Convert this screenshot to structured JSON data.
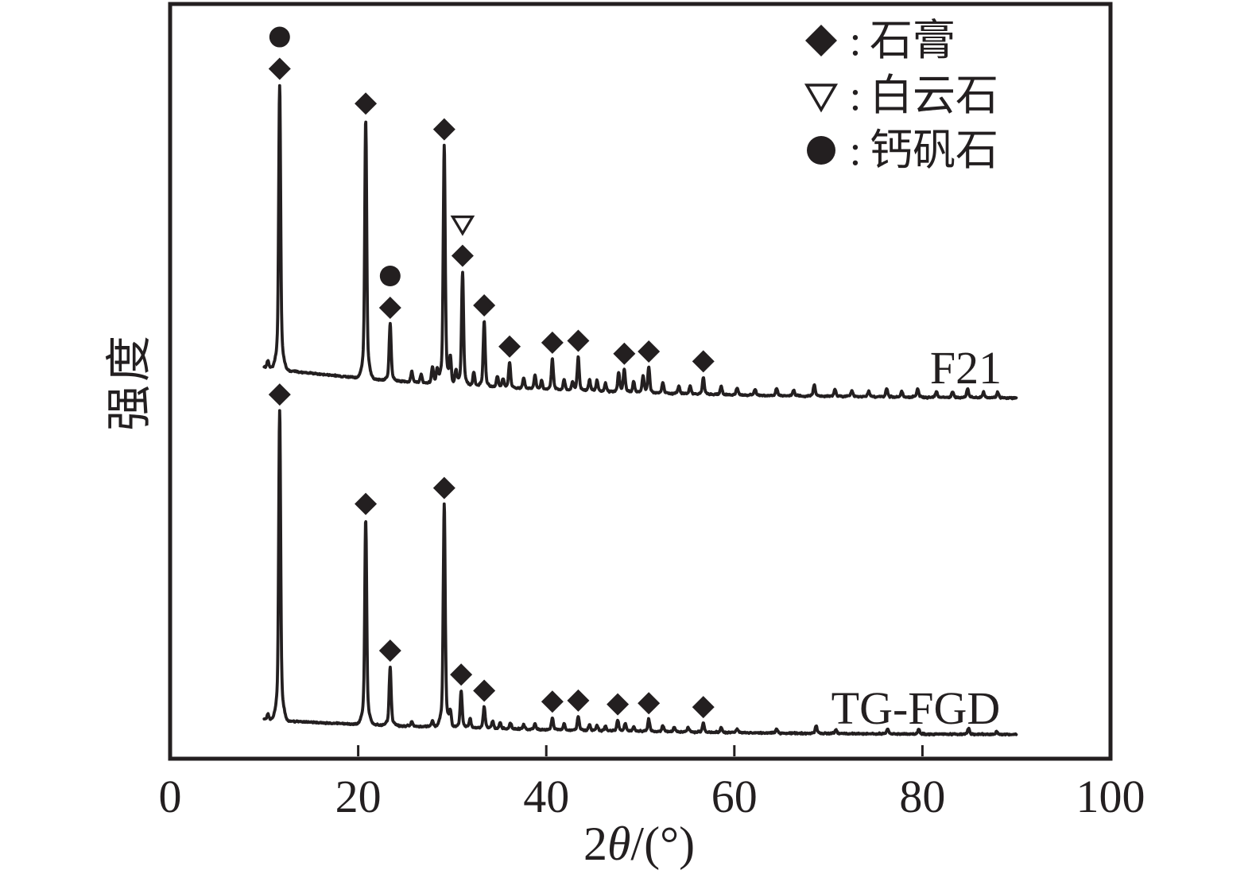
{
  "colors": {
    "ink": "#231f20",
    "background": "#ffffff"
  },
  "axes": {
    "x": {
      "label_full": "2θ/(°)",
      "label_parts": {
        "prefix": "2",
        "theta": "θ",
        "suffix": "/(°)"
      },
      "tick_labels": [
        "0",
        "20",
        "40",
        "60",
        "80",
        "100"
      ]
    },
    "y": {
      "label": "强度"
    }
  },
  "legend": {
    "separator": ":",
    "entries": [
      {
        "symbol": "filled-diamond",
        "mineral_key": "gypsum",
        "label": "石膏"
      },
      {
        "symbol": "open-triangle-down",
        "mineral_key": "dolomite",
        "label": "白云石"
      },
      {
        "symbol": "filled-circle",
        "mineral_key": "ettringite",
        "label": "钙矾石"
      }
    ]
  },
  "chart_data": {
    "type": "line",
    "title": "",
    "xlabel": "2θ/(°)",
    "ylabel": "强度",
    "xlim": [
      0,
      100
    ],
    "x_data_range": [
      10,
      90
    ],
    "grid": false,
    "legend_position": "top-right",
    "y_axis_note": "intensity, arbitrary units, no tick labels",
    "x_axis": {
      "tick_values": [
        0,
        20,
        40,
        60,
        80,
        100
      ],
      "tick_labels": [
        "0",
        "20",
        "40",
        "60",
        "80",
        "100"
      ]
    },
    "marker_meanings": {
      "gypsum": {
        "symbol": "filled-diamond",
        "label": "石膏"
      },
      "dolomite": {
        "symbol": "open-triangle-down",
        "label": "白云石"
      },
      "ettringite": {
        "symbol": "filled-circle",
        "label": "钙矾石"
      }
    },
    "series": [
      {
        "name": "F21",
        "position": "top",
        "peaks": [
          {
            "two_theta": 11.65,
            "rel_intensity": 100,
            "markers": [
              "gypsum",
              "ettringite"
            ]
          },
          {
            "two_theta": 20.8,
            "rel_intensity": 91,
            "markers": [
              "gypsum"
            ]
          },
          {
            "two_theta": 23.4,
            "rel_intensity": 20,
            "markers": [
              "gypsum",
              "ettringite"
            ]
          },
          {
            "two_theta": 29.15,
            "rel_intensity": 84,
            "markers": [
              "gypsum"
            ]
          },
          {
            "two_theta": 31.1,
            "rel_intensity": 40,
            "markers": [
              "gypsum",
              "dolomite"
            ]
          },
          {
            "two_theta": 33.4,
            "rel_intensity": 23,
            "markers": [
              "gypsum"
            ]
          },
          {
            "two_theta": 36.1,
            "rel_intensity": 9,
            "markers": [
              "gypsum"
            ]
          },
          {
            "two_theta": 40.65,
            "rel_intensity": 11,
            "markers": [
              "gypsum"
            ]
          },
          {
            "two_theta": 43.4,
            "rel_intensity": 12,
            "markers": [
              "gypsum"
            ]
          },
          {
            "two_theta": 48.3,
            "rel_intensity": 8,
            "markers": [
              "gypsum"
            ]
          },
          {
            "two_theta": 50.9,
            "rel_intensity": 9,
            "markers": [
              "gypsum"
            ]
          },
          {
            "two_theta": 56.7,
            "rel_intensity": 6,
            "markers": [
              "gypsum"
            ]
          }
        ],
        "minor_peaks": [
          [
            10.4,
            2.5
          ],
          [
            25.7,
            4
          ],
          [
            26.7,
            3
          ],
          [
            27.9,
            6
          ],
          [
            28.4,
            5
          ],
          [
            29.8,
            9
          ],
          [
            30.4,
            5
          ],
          [
            32.3,
            5
          ],
          [
            34.8,
            4
          ],
          [
            35.4,
            3
          ],
          [
            37.6,
            4
          ],
          [
            38.8,
            5
          ],
          [
            39.5,
            3
          ],
          [
            41.9,
            4
          ],
          [
            42.8,
            3
          ],
          [
            44.6,
            4
          ],
          [
            45.4,
            4
          ],
          [
            46.3,
            3
          ],
          [
            47.7,
            7
          ],
          [
            49.3,
            4
          ],
          [
            50.3,
            6
          ],
          [
            52.4,
            4
          ],
          [
            54.1,
            3
          ],
          [
            55.3,
            3
          ],
          [
            58.6,
            3
          ],
          [
            60.3,
            2.5
          ],
          [
            62.2,
            2
          ],
          [
            64.5,
            2.5
          ],
          [
            66.3,
            2
          ],
          [
            68.5,
            4
          ],
          [
            70.7,
            2.5
          ],
          [
            72.5,
            2
          ],
          [
            74.3,
            2
          ],
          [
            76.2,
            3
          ],
          [
            77.8,
            2
          ],
          [
            79.5,
            3
          ],
          [
            81.5,
            2
          ],
          [
            83.2,
            2
          ],
          [
            84.8,
            3
          ],
          [
            86.5,
            2
          ],
          [
            88.0,
            2
          ]
        ]
      },
      {
        "name": "TG-FGD",
        "position": "bottom",
        "peaks": [
          {
            "two_theta": 11.65,
            "rel_intensity": 100,
            "markers": [
              "gypsum"
            ]
          },
          {
            "two_theta": 20.8,
            "rel_intensity": 66,
            "markers": [
              "gypsum"
            ]
          },
          {
            "two_theta": 23.4,
            "rel_intensity": 19,
            "markers": [
              "gypsum"
            ]
          },
          {
            "two_theta": 29.15,
            "rel_intensity": 72,
            "markers": [
              "gypsum"
            ]
          },
          {
            "two_theta": 30.95,
            "rel_intensity": 12,
            "markers": [
              "gypsum"
            ]
          },
          {
            "two_theta": 33.4,
            "rel_intensity": 7,
            "markers": [
              "gypsum"
            ]
          },
          {
            "two_theta": 40.65,
            "rel_intensity": 4,
            "markers": [
              "gypsum"
            ]
          },
          {
            "two_theta": 43.4,
            "rel_intensity": 4.5,
            "markers": [
              "gypsum"
            ]
          },
          {
            "two_theta": 47.6,
            "rel_intensity": 3.5,
            "markers": [
              "gypsum"
            ]
          },
          {
            "two_theta": 50.9,
            "rel_intensity": 4,
            "markers": [
              "gypsum"
            ]
          },
          {
            "two_theta": 56.7,
            "rel_intensity": 3,
            "markers": [
              "gypsum"
            ]
          }
        ],
        "minor_peaks": [
          [
            10.4,
            2
          ],
          [
            25.7,
            1.5
          ],
          [
            27.9,
            2
          ],
          [
            29.8,
            5
          ],
          [
            31.9,
            3
          ],
          [
            34.3,
            2.5
          ],
          [
            35.1,
            2
          ],
          [
            36.2,
            2
          ],
          [
            37.6,
            1.5
          ],
          [
            38.8,
            2
          ],
          [
            41.9,
            2
          ],
          [
            44.6,
            2
          ],
          [
            45.4,
            1.8
          ],
          [
            46.3,
            1.5
          ],
          [
            48.4,
            2.5
          ],
          [
            49.3,
            1.5
          ],
          [
            52.4,
            2
          ],
          [
            53.6,
            1.5
          ],
          [
            55.1,
            1.5
          ],
          [
            58.6,
            1.5
          ],
          [
            60.3,
            1.2
          ],
          [
            64.5,
            1.2
          ],
          [
            68.7,
            2.5
          ],
          [
            70.8,
            1.2
          ],
          [
            76.3,
            1.5
          ],
          [
            79.6,
            1.5
          ],
          [
            84.9,
            2
          ],
          [
            87.9,
            1
          ]
        ]
      }
    ]
  }
}
